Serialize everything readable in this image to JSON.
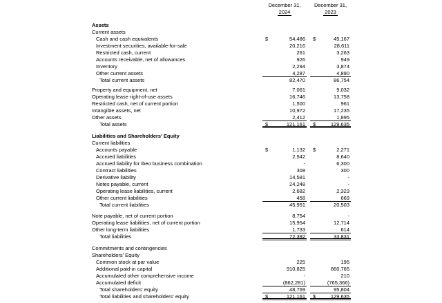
{
  "page": {
    "background": "#ffffff",
    "text_color": "#000000"
  },
  "header": {
    "columns": [
      {
        "line1": "December 31,",
        "year": "2024"
      },
      {
        "line1": "December 31,",
        "year": "2023"
      }
    ]
  },
  "rows": [
    {
      "label": "Assets",
      "indent": 0,
      "bold": true,
      "d1": "",
      "v1": "",
      "d2": "",
      "v2": "",
      "rule": "",
      "gap": 0
    },
    {
      "label": "Current assets",
      "indent": 0,
      "bold": false,
      "d1": "",
      "v1": "",
      "d2": "",
      "v2": "",
      "rule": "",
      "gap": 0
    },
    {
      "label": "Cash and cash equivalents",
      "indent": 1,
      "bold": false,
      "d1": "$",
      "v1": "54,486",
      "d2": "$",
      "v2": "45,167",
      "rule": "",
      "gap": 0
    },
    {
      "label": "Investment securities, available-for-sale",
      "indent": 1,
      "bold": false,
      "d1": "",
      "v1": "20,216",
      "d2": "",
      "v2": "28,611",
      "rule": "",
      "gap": 0
    },
    {
      "label": "Restricted cash, current",
      "indent": 1,
      "bold": false,
      "d1": "",
      "v1": "261",
      "d2": "",
      "v2": "3,263",
      "rule": "",
      "gap": 0
    },
    {
      "label": "Accounts receivable, net of allowances",
      "indent": 1,
      "bold": false,
      "d1": "",
      "v1": "926",
      "d2": "",
      "v2": "949",
      "rule": "",
      "gap": 0
    },
    {
      "label": "Inventory",
      "indent": 1,
      "bold": false,
      "d1": "",
      "v1": "2,294",
      "d2": "",
      "v2": "3,874",
      "rule": "",
      "gap": 0
    },
    {
      "label": "Other current assets",
      "indent": 1,
      "bold": false,
      "d1": "",
      "v1": "4,287",
      "d2": "",
      "v2": "4,890",
      "rule": "s",
      "gap": 0
    },
    {
      "label": "Total current assets",
      "indent": 2,
      "bold": false,
      "d1": "",
      "v1": "82,470",
      "d2": "",
      "v2": "86,754",
      "rule": "",
      "gap": 0
    },
    {
      "label": "Property and equipment, net",
      "indent": 0,
      "bold": false,
      "d1": "",
      "v1": "7,061",
      "d2": "",
      "v2": "9,032",
      "rule": "",
      "gap": 4
    },
    {
      "label": "Operating lease right-of-use assets",
      "indent": 0,
      "bold": false,
      "d1": "",
      "v1": "16,746",
      "d2": "",
      "v2": "13,758",
      "rule": "",
      "gap": 0
    },
    {
      "label": "Restricted cash, net of current portion",
      "indent": 0,
      "bold": false,
      "d1": "",
      "v1": "1,500",
      "d2": "",
      "v2": "961",
      "rule": "",
      "gap": 0
    },
    {
      "label": "Intangible assets, net",
      "indent": 0,
      "bold": false,
      "d1": "",
      "v1": "10,972",
      "d2": "",
      "v2": "17,235",
      "rule": "",
      "gap": 0
    },
    {
      "label": "Other assets",
      "indent": 0,
      "bold": false,
      "d1": "",
      "v1": "2,412",
      "d2": "",
      "v2": "1,895",
      "rule": "s",
      "gap": 0
    },
    {
      "label": "Total assets",
      "indent": 2,
      "bold": false,
      "d1": "$",
      "v1": "121,161",
      "d2": "$",
      "v2": "129,635",
      "rule": "d",
      "gap": 0
    },
    {
      "label": "Liabilities and Shareholders' Equity",
      "indent": 0,
      "bold": true,
      "d1": "",
      "v1": "",
      "d2": "",
      "v2": "",
      "rule": "",
      "gap": 7
    },
    {
      "label": "Current liabilities",
      "indent": 0,
      "bold": false,
      "d1": "",
      "v1": "",
      "d2": "",
      "v2": "",
      "rule": "",
      "gap": 0
    },
    {
      "label": "Accounts payable",
      "indent": 1,
      "bold": false,
      "d1": "$",
      "v1": "1,132",
      "d2": "$",
      "v2": "2,271",
      "rule": "",
      "gap": 0
    },
    {
      "label": "Accrued liabilities",
      "indent": 1,
      "bold": false,
      "d1": "",
      "v1": "2,542",
      "d2": "",
      "v2": "8,640",
      "rule": "",
      "gap": 0
    },
    {
      "label": "Accrued liability for Ibeo business combination",
      "indent": 1,
      "bold": false,
      "d1": "",
      "v1": "-",
      "d2": "",
      "v2": "6,300",
      "rule": "",
      "gap": 0
    },
    {
      "label": "Contract liabilities",
      "indent": 1,
      "bold": false,
      "d1": "",
      "v1": "308",
      "d2": "",
      "v2": "300",
      "rule": "",
      "gap": 0
    },
    {
      "label": "Derivative liability",
      "indent": 1,
      "bold": false,
      "d1": "",
      "v1": "14,581",
      "d2": "",
      "v2": "-",
      "rule": "",
      "gap": 0
    },
    {
      "label": "Notes payable, current",
      "indent": 1,
      "bold": false,
      "d1": "",
      "v1": "24,248",
      "d2": "",
      "v2": "-",
      "rule": "",
      "gap": 0
    },
    {
      "label": "Operating lease liabilities, current",
      "indent": 1,
      "bold": false,
      "d1": "",
      "v1": "2,682",
      "d2": "",
      "v2": "2,323",
      "rule": "",
      "gap": 0
    },
    {
      "label": "Other current liabilities",
      "indent": 1,
      "bold": false,
      "d1": "",
      "v1": "458",
      "d2": "",
      "v2": "669",
      "rule": "s",
      "gap": 0
    },
    {
      "label": "Total current liabilities",
      "indent": 2,
      "bold": false,
      "d1": "",
      "v1": "45,951",
      "d2": "",
      "v2": "20,503",
      "rule": "",
      "gap": 0
    },
    {
      "label": "Note payable, net of current portion",
      "indent": 0,
      "bold": false,
      "d1": "",
      "v1": "8,754",
      "d2": "",
      "v2": "-",
      "rule": "",
      "gap": 6
    },
    {
      "label": "Operating lease liabilities, net of current portion",
      "indent": 0,
      "bold": false,
      "d1": "",
      "v1": "15,954",
      "d2": "",
      "v2": "12,714",
      "rule": "",
      "gap": 0
    },
    {
      "label": "Other long-term liabilities",
      "indent": 0,
      "bold": false,
      "d1": "",
      "v1": "1,733",
      "d2": "",
      "v2": "614",
      "rule": "s",
      "gap": 0
    },
    {
      "label": "Total liabilities",
      "indent": 2,
      "bold": false,
      "d1": "",
      "v1": "72,392",
      "d2": "",
      "v2": "33,831",
      "rule": "d",
      "gap": 0
    },
    {
      "label": "Commitments and contingencies",
      "indent": 0,
      "bold": false,
      "d1": "",
      "v1": "",
      "d2": "",
      "v2": "",
      "rule": "",
      "gap": 7
    },
    {
      "label": "Shareholders' Equity",
      "indent": 0,
      "bold": false,
      "d1": "",
      "v1": "",
      "d2": "",
      "v2": "",
      "rule": "",
      "gap": 0
    },
    {
      "label": "Common stock at par value",
      "indent": 1,
      "bold": false,
      "d1": "",
      "v1": "225",
      "d2": "",
      "v2": "195",
      "rule": "",
      "gap": 0
    },
    {
      "label": "Additional paid-in capital",
      "indent": 1,
      "bold": false,
      "d1": "",
      "v1": "910,825",
      "d2": "",
      "v2": "860,765",
      "rule": "",
      "gap": 0
    },
    {
      "label": "Accumulated other comprehensive income",
      "indent": 1,
      "bold": false,
      "d1": "",
      "v1": "-",
      "d2": "",
      "v2": "210",
      "rule": "",
      "gap": 0
    },
    {
      "label": "Accumulated deficit",
      "indent": 1,
      "bold": false,
      "d1": "",
      "v1": "(862,281)",
      "d2": "",
      "v2": "(765,366)",
      "rule": "s",
      "gap": 0
    },
    {
      "label": "Total shareholders' equity",
      "indent": 2,
      "bold": false,
      "d1": "",
      "v1": "48,769",
      "d2": "",
      "v2": "95,804",
      "rule": "s",
      "gap": 0
    },
    {
      "label": "Total liabilities and shareholders' equity",
      "indent": 2,
      "bold": false,
      "d1": "$",
      "v1": "121,161",
      "d2": "$",
      "v2": "129,635",
      "rule": "d",
      "gap": 0
    }
  ]
}
